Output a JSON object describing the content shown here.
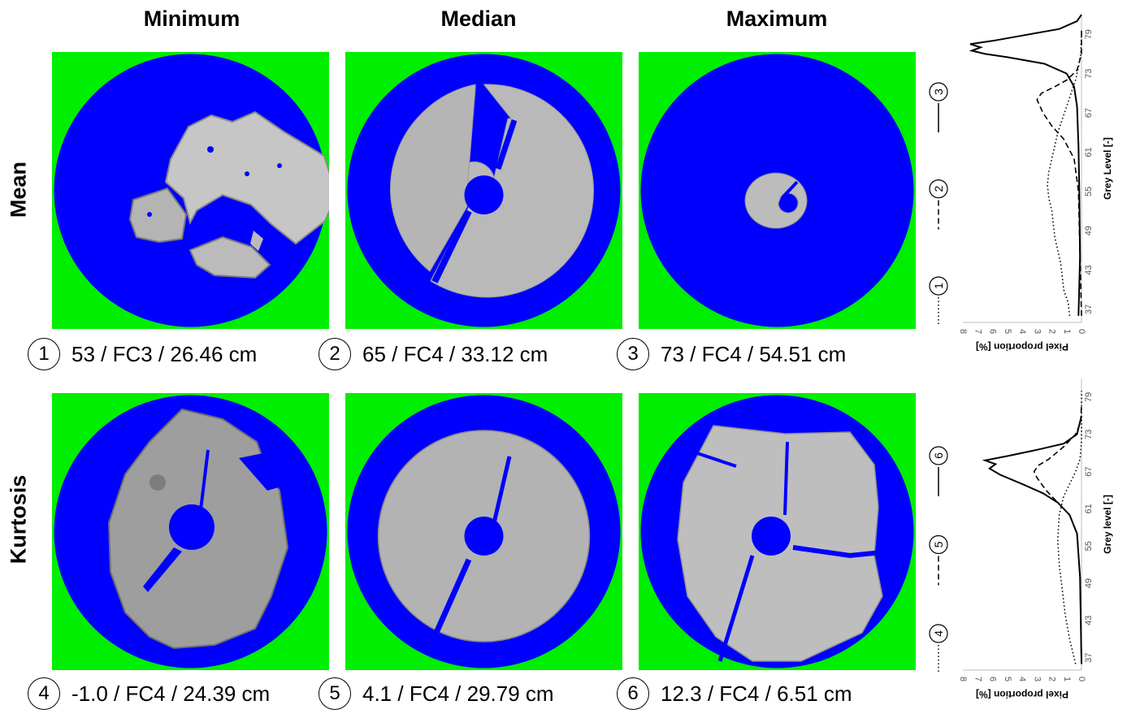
{
  "columns": [
    "Minimum",
    "Median",
    "Maximum"
  ],
  "rows": [
    "Mean",
    "Kurtosis"
  ],
  "captions": [
    {
      "num": "1",
      "text": "53 / FC3 / 26.46 cm"
    },
    {
      "num": "2",
      "text": "65 / FC4 / 33.12 cm"
    },
    {
      "num": "3",
      "text": "73 / FC4 / 54.51 cm"
    },
    {
      "num": "4",
      "text": "-1.0 / FC4 / 24.39 cm"
    },
    {
      "num": "5",
      "text": "4.1 / FC4 / 29.79 cm"
    },
    {
      "num": "6",
      "text": "12.3 / FC4 / 6.51 cm"
    }
  ],
  "colors": {
    "background": "#00ee00",
    "mask": "#0000ff",
    "wood": "#b9b9b9"
  },
  "chart_data": [
    {
      "type": "line",
      "row": "Mean",
      "xlabel": "Pixel proportion [%]",
      "ylabel": "Grey Level [-]",
      "x_ticks": [
        "8",
        "7",
        "6",
        "5",
        "4",
        "3",
        "2",
        "1",
        "0"
      ],
      "y_ticks": [
        "37",
        "43",
        "49",
        "55",
        "61",
        "67",
        "73",
        "79"
      ],
      "xlim": [
        0,
        8
      ],
      "ylim": [
        35,
        82
      ],
      "legend": [
        {
          "num": "1",
          "style": "dotted"
        },
        {
          "num": "2",
          "style": "dashed"
        },
        {
          "num": "3",
          "style": "solid"
        }
      ],
      "series": [
        {
          "style": "dotted",
          "points": [
            [
              0.8,
              36
            ],
            [
              0.9,
              38
            ],
            [
              1.2,
              40
            ],
            [
              1.3,
              42
            ],
            [
              1.4,
              44
            ],
            [
              1.6,
              46
            ],
            [
              1.8,
              48
            ],
            [
              1.9,
              50
            ],
            [
              2.0,
              52
            ],
            [
              2.2,
              54
            ],
            [
              2.3,
              56
            ],
            [
              2.2,
              58
            ],
            [
              2.0,
              60
            ],
            [
              1.8,
              62
            ],
            [
              1.6,
              64
            ],
            [
              1.3,
              66
            ],
            [
              1.0,
              68
            ],
            [
              0.7,
              70
            ],
            [
              0.4,
              72
            ],
            [
              0.2,
              74
            ],
            [
              0.05,
              76
            ],
            [
              0,
              79
            ]
          ]
        },
        {
          "style": "dashed",
          "points": [
            [
              0,
              36
            ],
            [
              0.1,
              45
            ],
            [
              0.2,
              55
            ],
            [
              0.5,
              60
            ],
            [
              1.2,
              63
            ],
            [
              2.0,
              65
            ],
            [
              2.6,
              67
            ],
            [
              3.0,
              69
            ],
            [
              2.7,
              70
            ],
            [
              1.8,
              71
            ],
            [
              1.0,
              72
            ],
            [
              0.3,
              73.5
            ],
            [
              0,
              76
            ],
            [
              0,
              80
            ]
          ]
        },
        {
          "style": "solid",
          "points": [
            [
              0.2,
              36
            ],
            [
              0.1,
              45
            ],
            [
              0.15,
              55
            ],
            [
              0.2,
              62
            ],
            [
              0.3,
              68
            ],
            [
              0.5,
              71
            ],
            [
              1.0,
              73
            ],
            [
              2.5,
              74.5
            ],
            [
              5.0,
              75.5
            ],
            [
              6.5,
              76
            ],
            [
              7.4,
              76.5
            ],
            [
              6.8,
              77
            ],
            [
              7.5,
              77.5
            ],
            [
              6.0,
              78
            ],
            [
              4.0,
              78.8
            ],
            [
              1.5,
              79.8
            ],
            [
              0.3,
              81
            ],
            [
              0,
              82
            ]
          ]
        }
      ]
    },
    {
      "type": "line",
      "row": "Kurtosis",
      "xlabel": "Pixel proportion [%]",
      "ylabel": "Grey level [-]",
      "x_ticks": [
        "8",
        "7",
        "6",
        "5",
        "4",
        "3",
        "2",
        "1",
        "0"
      ],
      "y_ticks": [
        "37",
        "43",
        "49",
        "55",
        "61",
        "67",
        "73",
        "79"
      ],
      "xlim": [
        0,
        8
      ],
      "ylim": [
        35,
        82
      ],
      "legend": [
        {
          "num": "4",
          "style": "dotted"
        },
        {
          "num": "5",
          "style": "dashed"
        },
        {
          "num": "6",
          "style": "solid"
        }
      ],
      "series": [
        {
          "style": "dotted",
          "points": [
            [
              0.4,
              36
            ],
            [
              0.8,
              40
            ],
            [
              1.1,
              44
            ],
            [
              1.3,
              48
            ],
            [
              1.5,
              52
            ],
            [
              1.6,
              56
            ],
            [
              1.5,
              60
            ],
            [
              1.2,
              63
            ],
            [
              0.8,
              65
            ],
            [
              0.4,
              67
            ],
            [
              0.1,
              69
            ],
            [
              0,
              72
            ],
            [
              0,
              80
            ]
          ]
        },
        {
          "style": "dashed",
          "points": [
            [
              0,
              36
            ],
            [
              0.1,
              50
            ],
            [
              0.3,
              57
            ],
            [
              0.8,
              60
            ],
            [
              1.6,
              62
            ],
            [
              2.4,
              64
            ],
            [
              3.0,
              66
            ],
            [
              3.2,
              67
            ],
            [
              2.9,
              68
            ],
            [
              2.2,
              69
            ],
            [
              1.2,
              71
            ],
            [
              0.4,
              73
            ],
            [
              0.05,
              75
            ],
            [
              0,
              78
            ]
          ]
        },
        {
          "style": "solid",
          "points": [
            [
              0,
              36
            ],
            [
              0.1,
              50
            ],
            [
              0.3,
              57
            ],
            [
              0.8,
              60
            ],
            [
              1.6,
              62
            ],
            [
              2.6,
              63.5
            ],
            [
              4.0,
              65
            ],
            [
              5.5,
              66.5
            ],
            [
              6.2,
              67.5
            ],
            [
              5.8,
              68.2
            ],
            [
              6.5,
              68.8
            ],
            [
              5.0,
              69.5
            ],
            [
              3.0,
              70.5
            ],
            [
              1.2,
              71.5
            ],
            [
              0.3,
              73
            ],
            [
              0,
              76
            ]
          ]
        }
      ]
    }
  ]
}
